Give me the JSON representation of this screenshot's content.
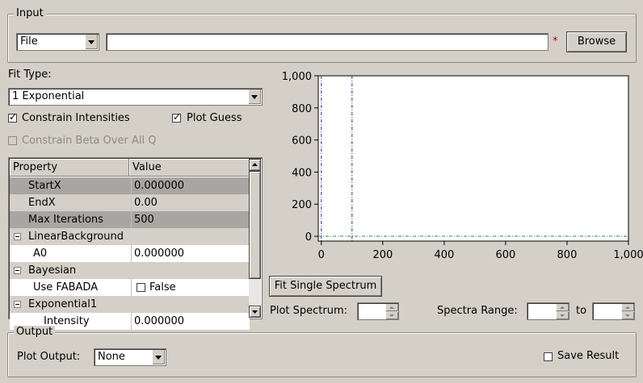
{
  "input": {
    "group_title": "Input",
    "source_type": "File",
    "file_path": "",
    "required_marker": "*",
    "browse_label": "Browse"
  },
  "fit": {
    "fit_type_label": "Fit Type:",
    "fit_type_value": "1 Exponential",
    "constrain_intensities_label": "Constrain Intensities",
    "constrain_intensities_checked": true,
    "plot_guess_label": "Plot Guess",
    "plot_guess_checked": true,
    "constrain_beta_label": "Constrain Beta Over All Q",
    "constrain_beta_checked": false
  },
  "properties": {
    "header_property": "Property",
    "header_value": "Value",
    "rows": [
      {
        "name": "StartX",
        "value": "0.000000"
      },
      {
        "name": "EndX",
        "value": "0.00"
      },
      {
        "name": "Max Iterations",
        "value": "500"
      },
      {
        "name": "LinearBackground",
        "value": ""
      },
      {
        "name": "A0",
        "value": "0.000000"
      },
      {
        "name": "Bayesian",
        "value": ""
      },
      {
        "name": "Use FABADA",
        "value": "False"
      },
      {
        "name": "Exponential1",
        "value": ""
      },
      {
        "name": "Intensity",
        "value": "0.000000"
      }
    ]
  },
  "plot_controls": {
    "fit_single_label": "Fit Single Spectrum",
    "plot_spectrum_label": "Plot Spectrum:",
    "plot_spectrum_value": "",
    "spectra_range_label": "Spectra Range:",
    "spectra_range_from": "",
    "to_label": "to",
    "spectra_range_to": ""
  },
  "output": {
    "group_title": "Output",
    "plot_output_label": "Plot Output:",
    "plot_output_value": "None",
    "save_result_label": "Save Result",
    "save_result_checked": false
  },
  "chart_data": {
    "type": "line",
    "xlim": [
      -10,
      1000
    ],
    "ylim": [
      -30,
      1000
    ],
    "x_ticks": [
      "0",
      "200",
      "400",
      "600",
      "800",
      "1,000"
    ],
    "y_ticks": [
      "0",
      "200",
      "400",
      "600",
      "800",
      "1,000"
    ],
    "x_tick_values": [
      0,
      200,
      400,
      600,
      800,
      1000
    ],
    "y_tick_values": [
      0,
      200,
      400,
      600,
      800,
      1000
    ],
    "range_markers": [
      0,
      100
    ],
    "baseline": 0,
    "series": []
  }
}
